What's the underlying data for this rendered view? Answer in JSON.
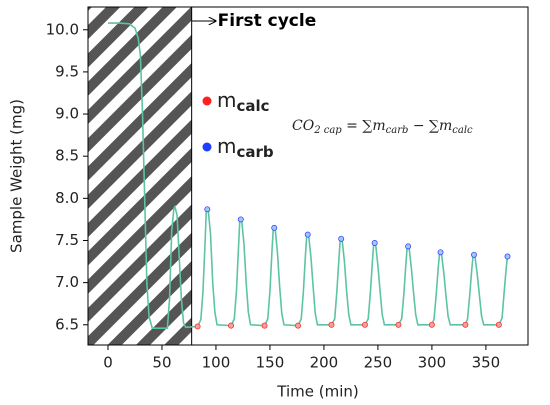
{
  "chart_data": {
    "type": "line",
    "xlabel": "Time (min)",
    "ylabel": "Sample Weight (mg)",
    "xlim": [
      -18.5,
      389
    ],
    "ylim": [
      6.26,
      10.27
    ],
    "xticks": [
      0,
      50,
      100,
      150,
      200,
      250,
      300,
      350
    ],
    "yticks": [
      6.5,
      {
        "value": 7,
        "label": "7.0"
      },
      7.5,
      {
        "value": 8,
        "label": "8.0"
      },
      8.5,
      {
        "value": 9,
        "label": "9.0"
      },
      9.5,
      {
        "value": 10,
        "label": "10.0"
      }
    ],
    "hatched_span": [
      -18.5,
      77.5
    ],
    "first_cycle_label": "First cycle",
    "equation": [
      {
        "text": "CO"
      },
      {
        "sub": "2 cap"
      },
      {
        "text": " = ∑m"
      },
      {
        "sub": "carb"
      },
      {
        "text": " − ∑m"
      },
      {
        "sub": "calc"
      }
    ],
    "series": [
      {
        "kind": "line",
        "color": "#5cc4a4",
        "x": [
          0,
          10,
          20,
          25,
          28,
          30,
          32,
          34,
          36,
          38,
          41,
          55,
          57,
          59,
          61,
          62,
          64,
          66,
          68,
          70,
          72,
          83,
          86,
          88,
          90,
          91,
          92,
          93,
          95,
          97,
          99,
          101,
          114,
          117,
          119,
          121,
          122,
          123,
          124,
          126,
          128,
          130,
          132,
          145,
          148,
          150,
          152,
          153,
          154,
          155,
          157,
          159,
          161,
          163,
          176,
          179,
          181,
          183,
          184,
          185,
          186,
          188,
          190,
          192,
          194,
          207,
          210,
          212,
          214,
          215,
          216,
          217,
          219,
          221,
          223,
          225,
          238,
          241,
          243,
          245,
          246,
          247,
          248,
          250,
          252,
          254,
          256,
          269,
          272,
          274,
          276,
          277,
          278,
          279,
          281,
          283,
          285,
          287,
          300,
          302,
          304,
          306,
          307,
          308,
          309,
          311,
          313,
          315,
          317,
          331,
          333,
          335,
          337,
          338,
          339,
          340,
          342,
          344,
          346,
          348,
          362,
          365,
          367,
          369,
          370
        ],
        "values": [
          10.08,
          10.08,
          10.07,
          10.02,
          9.9,
          9.7,
          9.0,
          8.0,
          7.0,
          6.6,
          6.46,
          6.46,
          6.8,
          7.6,
          7.88,
          7.9,
          7.8,
          7.3,
          6.8,
          6.52,
          6.47,
          6.48,
          6.56,
          6.9,
          7.5,
          7.84,
          7.87,
          7.84,
          7.57,
          7.0,
          6.65,
          6.5,
          6.49,
          6.57,
          6.9,
          7.45,
          7.72,
          7.75,
          7.72,
          7.45,
          7.0,
          6.65,
          6.5,
          6.49,
          6.57,
          6.9,
          7.4,
          7.62,
          7.65,
          7.62,
          7.35,
          6.95,
          6.63,
          6.5,
          6.49,
          6.57,
          6.9,
          7.35,
          7.54,
          7.57,
          7.54,
          7.3,
          6.95,
          6.63,
          6.5,
          6.5,
          6.57,
          6.9,
          7.3,
          7.49,
          7.52,
          7.49,
          7.25,
          6.9,
          6.62,
          6.5,
          6.5,
          6.57,
          6.88,
          7.27,
          7.44,
          7.47,
          7.44,
          7.2,
          6.9,
          6.62,
          6.5,
          6.5,
          6.57,
          6.86,
          7.24,
          7.4,
          7.43,
          7.4,
          7.17,
          6.88,
          6.62,
          6.5,
          6.5,
          6.57,
          6.86,
          7.2,
          7.33,
          7.36,
          7.33,
          7.12,
          6.85,
          6.6,
          6.5,
          6.5,
          6.57,
          6.85,
          7.17,
          7.3,
          7.33,
          7.3,
          7.1,
          6.85,
          6.6,
          6.5,
          6.5,
          6.58,
          6.9,
          7.2,
          7.31
        ]
      },
      {
        "kind": "points",
        "name": {
          "base": "m",
          "sub": "calc"
        },
        "color": "#ff2020",
        "fill": "#f4a0a0",
        "x": [
          83,
          114,
          145,
          176,
          207,
          238,
          269,
          300,
          331,
          362
        ],
        "values": [
          6.48,
          6.49,
          6.49,
          6.49,
          6.5,
          6.5,
          6.5,
          6.5,
          6.5,
          6.5
        ]
      },
      {
        "kind": "points",
        "name": {
          "base": "m",
          "sub": "carb"
        },
        "color": "#1f3fff",
        "fill": "#a8c4f4",
        "x": [
          92,
          123,
          154,
          185,
          216,
          247,
          278,
          308,
          339,
          370
        ],
        "values": [
          7.87,
          7.75,
          7.65,
          7.57,
          7.52,
          7.47,
          7.43,
          7.36,
          7.33,
          7.31
        ]
      }
    ]
  }
}
